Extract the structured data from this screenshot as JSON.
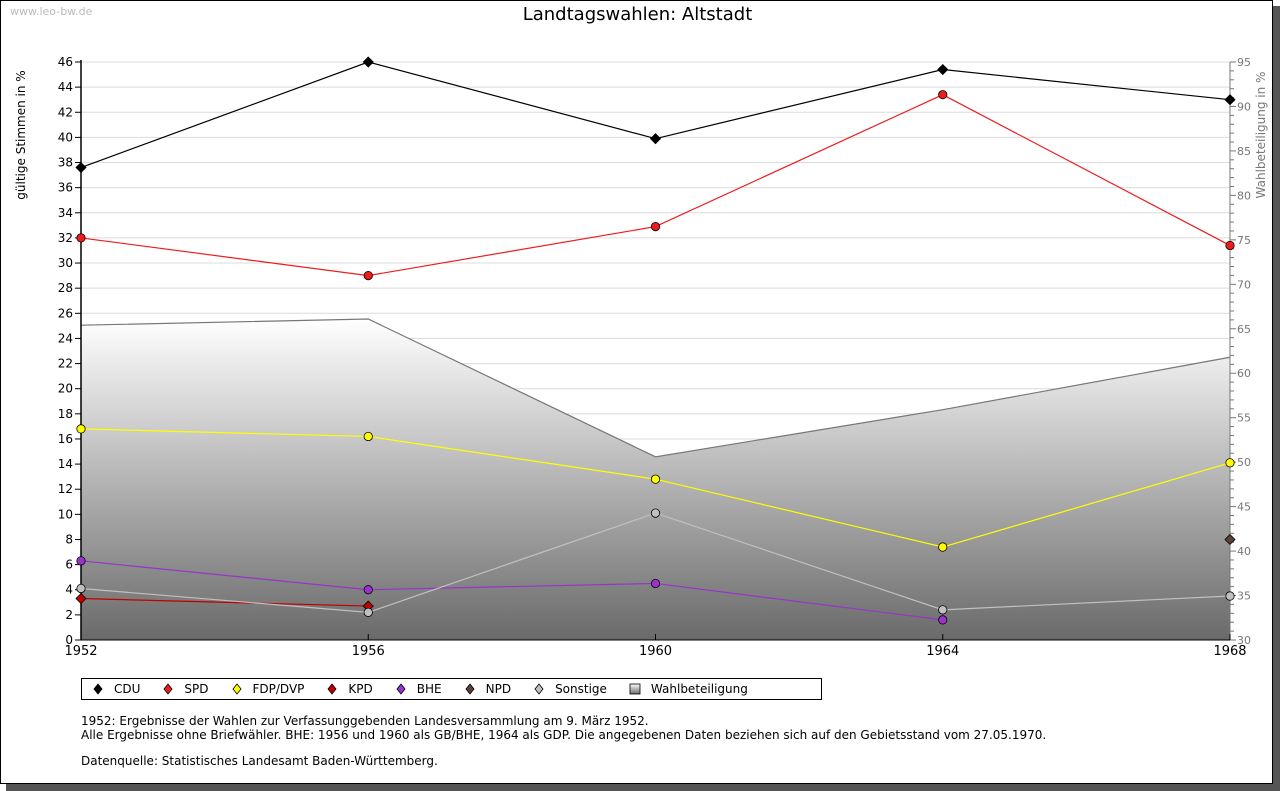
{
  "watermark": "www.leo-bw.de",
  "chart_data": {
    "type": "line",
    "title": "Landtagswahlen: Altstadt",
    "xlabel": "",
    "ylabel": "gültige Stimmen in %",
    "y2label": "Wahlbeteiligung in %",
    "categories": [
      "1952",
      "1956",
      "1960",
      "1964",
      "1968"
    ],
    "ylim": [
      0,
      46
    ],
    "y2lim": [
      30,
      95
    ],
    "yticks": [
      "0",
      "2",
      "4",
      "6",
      "8",
      "10",
      "12",
      "14",
      "16",
      "18",
      "20",
      "22",
      "24",
      "26",
      "28",
      "30",
      "32",
      "34",
      "36",
      "38",
      "40",
      "42",
      "44",
      "46"
    ],
    "y2ticks": [
      "30",
      "35",
      "40",
      "45",
      "50",
      "55",
      "60",
      "65",
      "70",
      "75",
      "80",
      "85",
      "90",
      "95"
    ],
    "grid": true,
    "legend_position": "bottom",
    "series": [
      {
        "name": "CDU",
        "axis": "left",
        "color": "#000000",
        "marker": "diamond",
        "values": [
          37.6,
          46.0,
          39.9,
          45.4,
          43.0
        ]
      },
      {
        "name": "SPD",
        "axis": "left",
        "color": "#ee1c1c",
        "marker": "circle",
        "values": [
          32.0,
          29.0,
          32.9,
          43.4,
          31.4
        ]
      },
      {
        "name": "FDP/DVP",
        "axis": "left",
        "color": "#ffff00",
        "marker": "circle",
        "values": [
          16.8,
          16.2,
          12.8,
          7.4,
          14.1
        ]
      },
      {
        "name": "KPD",
        "axis": "left",
        "color": "#c00000",
        "marker": "diamond",
        "values": [
          3.3,
          2.7,
          null,
          null,
          null
        ]
      },
      {
        "name": "BHE",
        "axis": "left",
        "color": "#9933cc",
        "marker": "circle",
        "values": [
          6.3,
          4.0,
          4.5,
          1.6,
          null
        ]
      },
      {
        "name": "NPD",
        "axis": "left",
        "color": "#5c4033",
        "marker": "diamond",
        "values": [
          null,
          null,
          null,
          null,
          8.0
        ]
      },
      {
        "name": "Sonstige",
        "axis": "left",
        "color": "#c0c0c0",
        "marker": "circle",
        "values": [
          4.1,
          2.2,
          10.1,
          2.4,
          3.5
        ]
      },
      {
        "name": "Wahlbeteiligung",
        "axis": "right",
        "type": "area",
        "color": "#808080",
        "marker": "square",
        "values": [
          65.4,
          66.1,
          50.6,
          55.9,
          61.8
        ]
      }
    ]
  },
  "notes": [
    "1952: Ergebnisse der Wahlen zur Verfassunggebenden Landesversammlung am 9. März 1952.",
    "Alle Ergebnisse ohne Briefwähler. BHE: 1956 und 1960 als GB/BHE, 1964 als GDP. Die angegebenen Daten beziehen sich auf den Gebietsstand vom 27.05.1970.",
    "Datenquelle: Statistisches Landesamt Baden-Württemberg."
  ]
}
